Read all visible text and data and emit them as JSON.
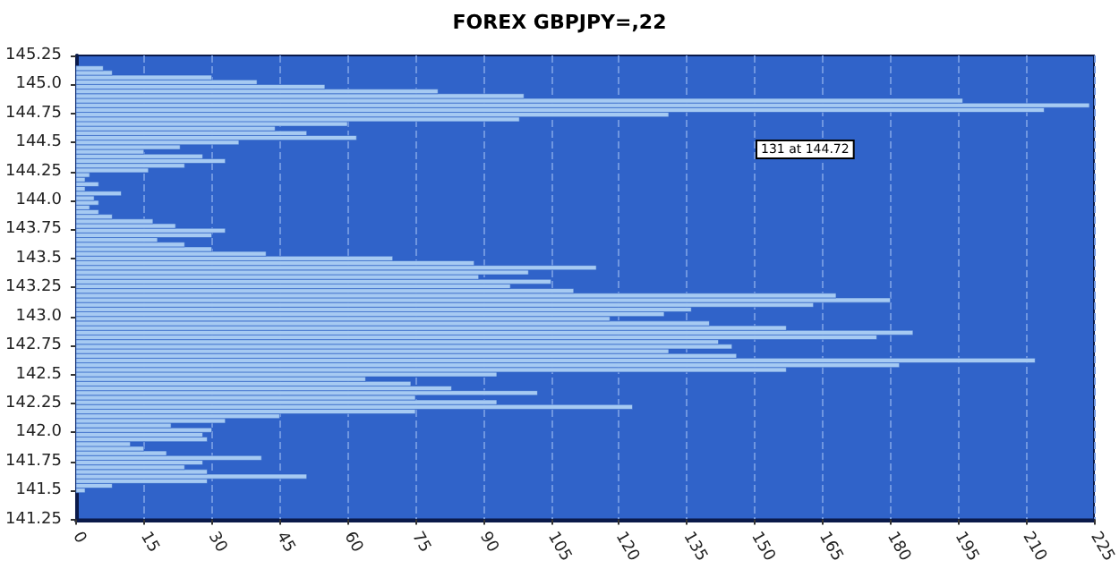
{
  "chart_data": {
    "type": "histogram",
    "orientation": "horizontal",
    "title": "FOREX GBPJPY=,22",
    "bins": [
      141.48,
      141.52,
      141.56,
      141.6,
      141.64,
      141.68,
      141.72,
      141.76,
      141.8,
      141.84,
      141.88,
      141.92,
      141.96,
      142.0,
      142.04,
      142.08,
      142.12,
      142.16,
      142.2,
      142.24,
      142.28,
      142.32,
      142.36,
      142.4,
      142.44,
      142.48,
      142.52,
      142.56,
      142.6,
      142.64,
      142.68,
      142.72,
      142.76,
      142.8,
      142.84,
      142.88,
      142.92,
      142.96,
      143.0,
      143.04,
      143.08,
      143.12,
      143.16,
      143.2,
      143.24,
      143.28,
      143.32,
      143.36,
      143.4,
      143.44,
      143.48,
      143.52,
      143.56,
      143.6,
      143.64,
      143.68,
      143.72,
      143.76,
      143.8,
      143.84,
      143.88,
      143.92,
      143.96,
      144.0,
      144.04,
      144.08,
      144.12,
      144.16,
      144.2,
      144.24,
      144.28,
      144.32,
      144.36,
      144.4,
      144.44,
      144.48,
      144.52,
      144.56,
      144.6,
      144.64,
      144.68,
      144.72,
      144.76,
      144.8,
      144.84,
      144.88,
      144.92,
      144.96,
      145.0,
      145.04,
      145.08,
      145.12,
      145.16
    ],
    "values": [
      2,
      8,
      29,
      51,
      29,
      24,
      28,
      41,
      20,
      15,
      12,
      29,
      28,
      30,
      21,
      33,
      45,
      75,
      123,
      93,
      75,
      102,
      83,
      74,
      64,
      93,
      157,
      182,
      212,
      146,
      131,
      145,
      142,
      177,
      185,
      157,
      140,
      118,
      130,
      136,
      163,
      180,
      168,
      110,
      96,
      105,
      89,
      100,
      115,
      88,
      70,
      42,
      30,
      24,
      18,
      30,
      33,
      22,
      17,
      8,
      5,
      3,
      5,
      4,
      10,
      2,
      5,
      2,
      3,
      16,
      24,
      33,
      28,
      15,
      23,
      36,
      62,
      51,
      44,
      60,
      98,
      131,
      214,
      224,
      196,
      99,
      80,
      55,
      40,
      30,
      8,
      6
    ],
    "color": "#a6caf2",
    "xlim": [
      0,
      225
    ],
    "xticks": [
      0,
      15,
      30,
      45,
      60,
      75,
      90,
      105,
      120,
      135,
      150,
      165,
      180,
      195,
      210,
      225
    ],
    "ylim": [
      141.25,
      145.25
    ],
    "yticks": [
      141.25,
      141.5,
      141.75,
      {
        "value": 142,
        "label": "142.0"
      },
      142.25,
      142.5,
      142.75,
      {
        "value": 143,
        "label": "143.0"
      },
      143.25,
      143.5,
      143.75,
      {
        "value": 144,
        "label": "144.0"
      },
      144.25,
      144.5,
      144.75,
      {
        "value": 145,
        "label": "145.0"
      },
      145.25
    ],
    "grid": "x",
    "annotations": [
      "131 at 144.72"
    ]
  }
}
